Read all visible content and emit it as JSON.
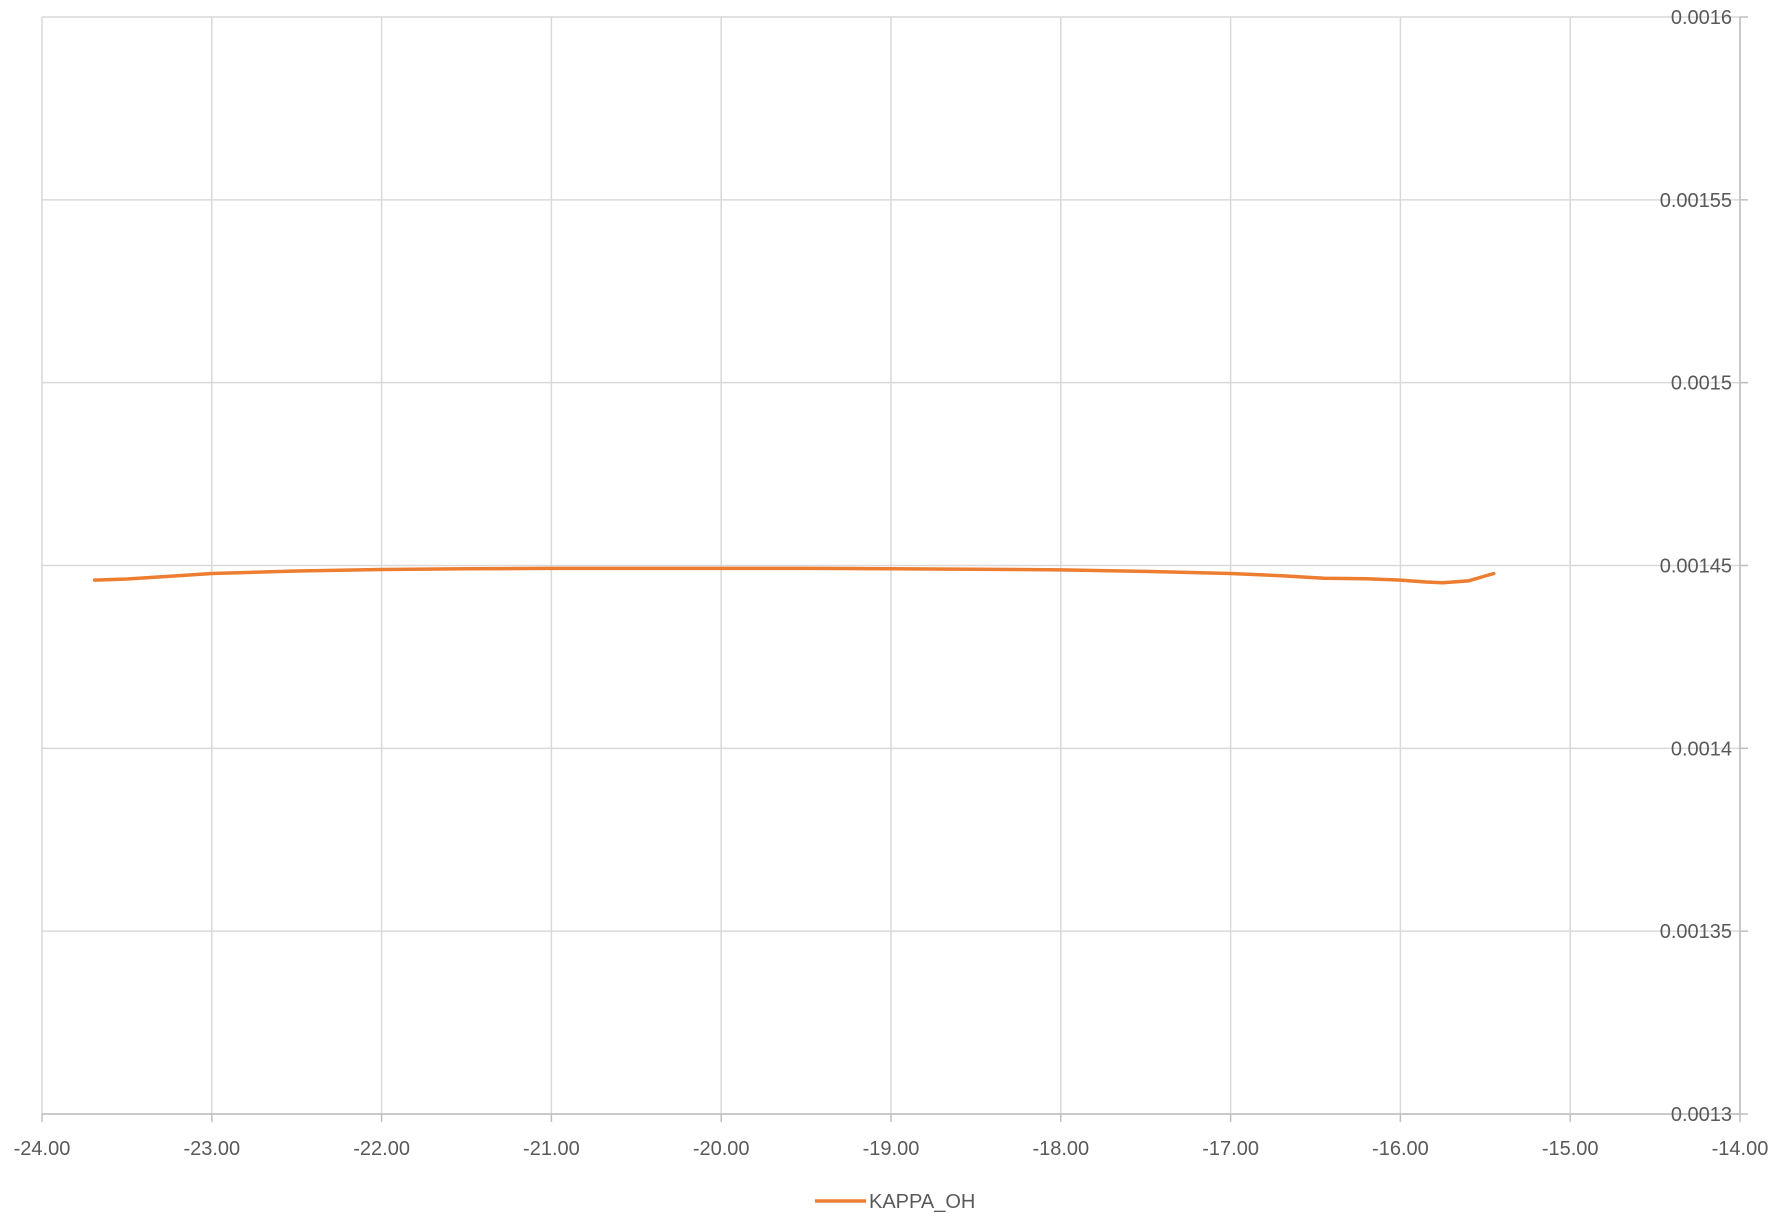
{
  "chart_data": {
    "type": "scatter",
    "style": "smooth-line",
    "title": "",
    "xlabel": "",
    "ylabel": "",
    "xlim": [
      -24,
      -14
    ],
    "ylim": [
      0.0013,
      0.0016
    ],
    "x_ticks": [
      "-24.00",
      "-23.00",
      "-22.00",
      "-21.00",
      "-20.00",
      "-19.00",
      "-18.00",
      "-17.00",
      "-16.00",
      "-15.00",
      "-14.00"
    ],
    "y_ticks": [
      "0.0013",
      "0.00135",
      "0.0014",
      "0.00145",
      "0.0015",
      "0.00155",
      "0.0016"
    ],
    "y_axis_side": "right",
    "grid": true,
    "legend_position": "bottom",
    "series": [
      {
        "name": "KAPPA_OH",
        "color": "#ED7D31",
        "points": [
          {
            "x": -23.69,
            "y": 0.001446
          },
          {
            "x": -23.5,
            "y": 0.0014463
          },
          {
            "x": -23.2,
            "y": 0.0014472
          },
          {
            "x": -23.0,
            "y": 0.0014478
          },
          {
            "x": -22.5,
            "y": 0.0014485
          },
          {
            "x": -22.0,
            "y": 0.0014489
          },
          {
            "x": -21.5,
            "y": 0.0014491
          },
          {
            "x": -21.0,
            "y": 0.0014492
          },
          {
            "x": -20.5,
            "y": 0.0014492
          },
          {
            "x": -20.0,
            "y": 0.0014492
          },
          {
            "x": -19.5,
            "y": 0.0014492
          },
          {
            "x": -19.0,
            "y": 0.0014491
          },
          {
            "x": -18.5,
            "y": 0.001449
          },
          {
            "x": -18.0,
            "y": 0.0014488
          },
          {
            "x": -17.5,
            "y": 0.0014484
          },
          {
            "x": -17.0,
            "y": 0.0014478
          },
          {
            "x": -16.7,
            "y": 0.0014472
          },
          {
            "x": -16.45,
            "y": 0.0014465
          },
          {
            "x": -16.2,
            "y": 0.0014464
          },
          {
            "x": -16.0,
            "y": 0.001446
          },
          {
            "x": -15.85,
            "y": 0.0014455
          },
          {
            "x": -15.75,
            "y": 0.0014453
          },
          {
            "x": -15.6,
            "y": 0.0014458
          },
          {
            "x": -15.45,
            "y": 0.0014478
          }
        ]
      }
    ]
  }
}
